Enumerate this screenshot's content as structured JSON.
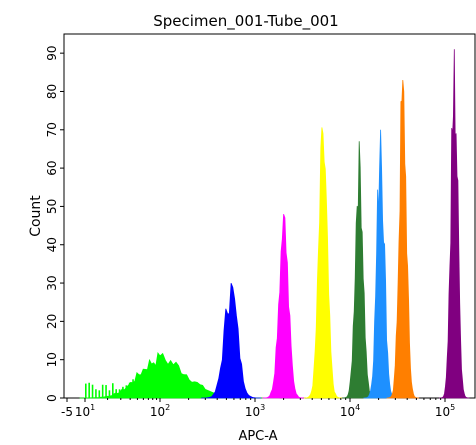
{
  "chart_data": {
    "type": "area",
    "title": "Specimen_001-Tube_001",
    "xlabel": "APC-A",
    "ylabel": "Count",
    "x_scale": "biexponential (log above ~10)",
    "x_ticks": [
      {
        "value": -5,
        "base": "-5",
        "exp": ""
      },
      {
        "value": 10,
        "base": "10",
        "exp": "1"
      },
      {
        "value": 100,
        "base": "10",
        "exp": "2"
      },
      {
        "value": 1000,
        "base": "10",
        "exp": "3"
      },
      {
        "value": 10000,
        "base": "10",
        "exp": "4"
      },
      {
        "value": 100000,
        "base": "10",
        "exp": "5"
      }
    ],
    "y_ticks": [
      "0",
      "10",
      "20",
      "30",
      "40",
      "50",
      "60",
      "70",
      "80",
      "90"
    ],
    "ylim": [
      0,
      95
    ],
    "grid": false,
    "legend": "none",
    "series": [
      {
        "color": "#00ff00",
        "peak_x": 100,
        "peak_count": 11,
        "spread": 0.28
      },
      {
        "color": "#0000ff",
        "peak_x": 560,
        "peak_count": 30,
        "spread": 0.07
      },
      {
        "color": "#ff00ff",
        "peak_x": 2000,
        "peak_count": 48,
        "spread": 0.05
      },
      {
        "color": "#ffff00",
        "peak_x": 5200,
        "peak_count": 69,
        "spread": 0.045
      },
      {
        "color": "#2e7d32",
        "peak_x": 12500,
        "peak_count": 67,
        "spread": 0.04
      },
      {
        "color": "#1e90ff",
        "peak_x": 21000,
        "peak_count": 70,
        "spread": 0.04
      },
      {
        "color": "#ff7f00",
        "peak_x": 36000,
        "peak_count": 83,
        "spread": 0.038
      },
      {
        "color": "#800080",
        "peak_x": 125000,
        "peak_count": 91,
        "spread": 0.035
      }
    ]
  }
}
